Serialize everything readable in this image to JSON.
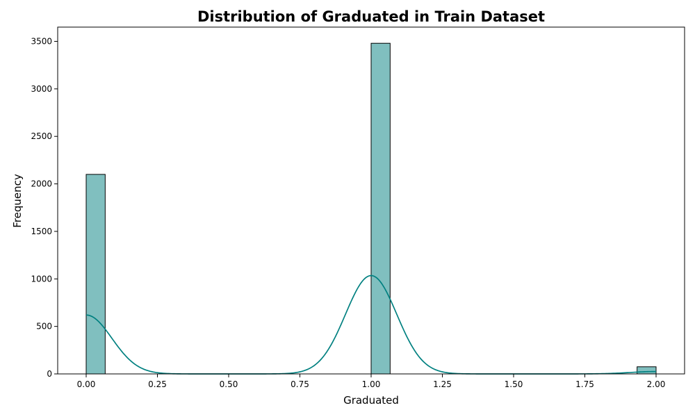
{
  "chart_data": {
    "type": "bar",
    "title": "Distribution of Graduated in Train Dataset",
    "xlabel": "Graduated",
    "ylabel": "Frequency",
    "xlim": [
      -0.1,
      2.1
    ],
    "ylim": [
      0,
      3650
    ],
    "x_ticks": [
      0.0,
      0.25,
      0.5,
      0.75,
      1.0,
      1.25,
      1.5,
      1.75,
      2.0
    ],
    "x_tick_labels": [
      "0.00",
      "0.25",
      "0.50",
      "0.75",
      "1.00",
      "1.25",
      "1.50",
      "1.75",
      "2.00"
    ],
    "y_ticks": [
      0,
      500,
      1000,
      1500,
      2000,
      2500,
      3000,
      3500
    ],
    "y_tick_labels": [
      "0",
      "500",
      "1000",
      "1500",
      "2000",
      "2500",
      "3000",
      "3500"
    ],
    "bins": [
      {
        "x0": 0.0,
        "x1": 0.0667,
        "count": 2100
      },
      {
        "x0": 1.0,
        "x1": 1.0667,
        "count": 3480
      },
      {
        "x0": 1.9333,
        "x1": 2.0,
        "count": 75
      }
    ],
    "kde_peaks": [
      {
        "center": 0.0,
        "height": 620
      },
      {
        "center": 1.0,
        "height": 1035
      },
      {
        "center": 2.0,
        "height": 25
      }
    ],
    "colors": {
      "bar_fill": "#80bfbf",
      "bar_edge": "#000000",
      "kde_line": "#008080"
    },
    "grid": false,
    "legend": "none"
  }
}
